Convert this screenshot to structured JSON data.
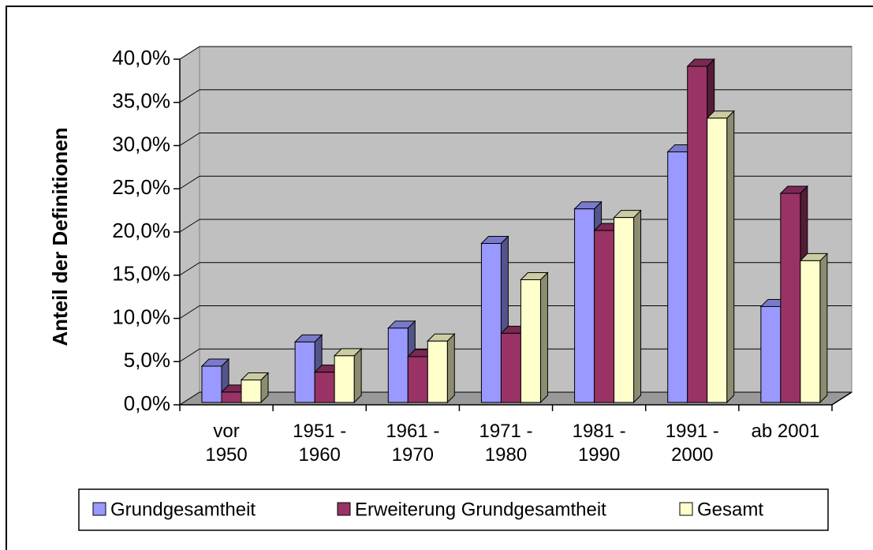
{
  "chart_data": {
    "type": "bar3d",
    "y_axis_label": "Anteil der Definitionen",
    "categories": [
      "vor 1950",
      "1951 - 1960",
      "1961 - 1970",
      "1971 - 1980",
      "1981 - 1990",
      "1991 - 2000",
      "ab 2001"
    ],
    "series": [
      {
        "name": "Grundgesamtheit",
        "color": "#9999ff",
        "values": [
          4.2,
          7.0,
          8.6,
          18.4,
          22.4,
          29.0,
          11.1
        ]
      },
      {
        "name": "Erweiterung Grundgesamtheit",
        "color": "#993366",
        "values": [
          1.2,
          3.5,
          5.3,
          8.0,
          19.9,
          38.9,
          24.2
        ]
      },
      {
        "name": "Gesamt",
        "color": "#ffffcc",
        "values": [
          2.6,
          5.4,
          7.1,
          14.2,
          21.4,
          32.9,
          16.4
        ]
      }
    ],
    "ylim": [
      0,
      40
    ],
    "yticks": [
      {
        "value": 0,
        "label": "0,0%"
      },
      {
        "value": 5,
        "label": "5,0%"
      },
      {
        "value": 10,
        "label": "10,0%"
      },
      {
        "value": 15,
        "label": "15,0%"
      },
      {
        "value": 20,
        "label": "20,0%"
      },
      {
        "value": 25,
        "label": "25,0%"
      },
      {
        "value": 30,
        "label": "30,0%"
      },
      {
        "value": 35,
        "label": "35,0%"
      },
      {
        "value": 40,
        "label": "40,0%"
      }
    ],
    "grid": true,
    "legend": "bottom"
  }
}
